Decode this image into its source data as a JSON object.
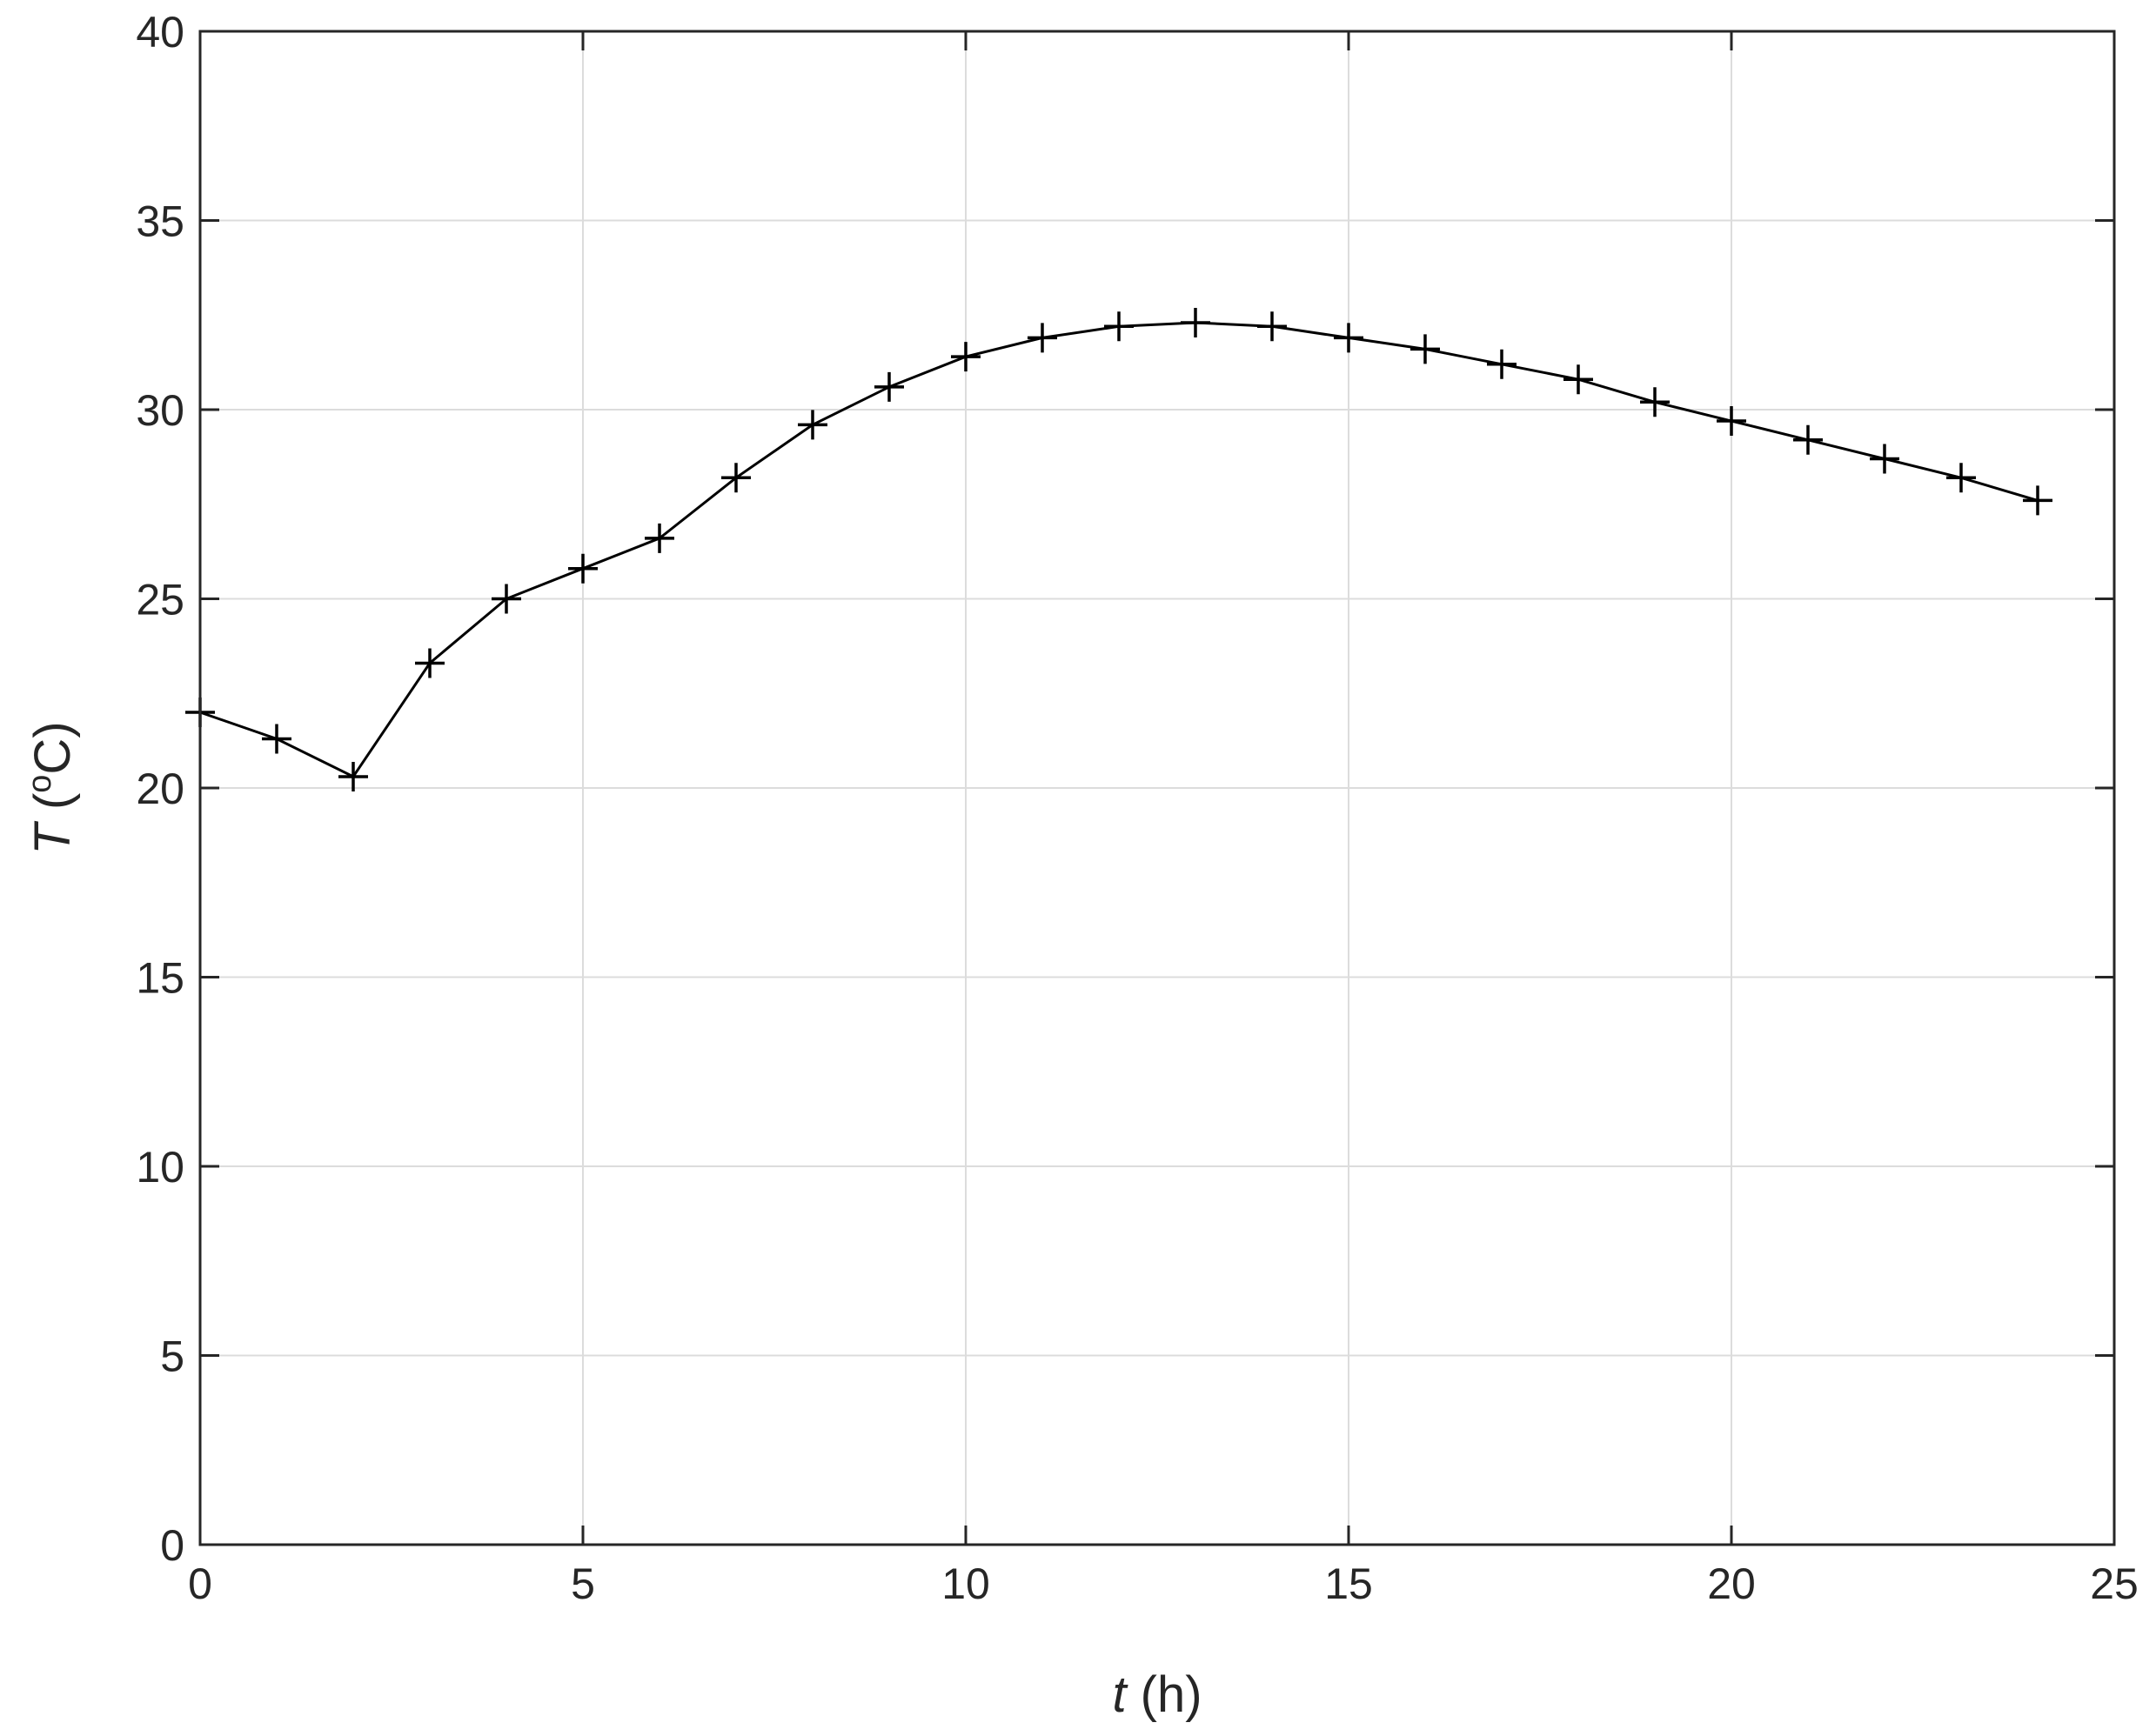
{
  "chart_data": {
    "type": "line",
    "title": "",
    "xlabel": {
      "var": "t",
      "unit": " (h)"
    },
    "ylabel": {
      "var": "T",
      "open": " (",
      "sup": "o",
      "unit": "C)"
    },
    "xlim": [
      0,
      25
    ],
    "ylim": [
      0,
      40
    ],
    "xticks": [
      0,
      5,
      10,
      15,
      20,
      25
    ],
    "yticks": [
      0,
      5,
      10,
      15,
      20,
      25,
      30,
      35,
      40
    ],
    "grid": true,
    "marker": "plus",
    "line_color": "#000000",
    "grid_color": "#dcdcdc",
    "axis_color": "#262626",
    "x": [
      0,
      1,
      2,
      3,
      4,
      5,
      6,
      7,
      8,
      9,
      10,
      11,
      12,
      13,
      14,
      15,
      16,
      17,
      18,
      19,
      20,
      21,
      22,
      23,
      24
    ],
    "y": [
      22.0,
      21.3,
      20.3,
      23.3,
      25.0,
      25.8,
      26.6,
      28.2,
      29.6,
      30.6,
      31.4,
      31.9,
      32.2,
      32.3,
      32.2,
      31.9,
      31.6,
      31.2,
      30.8,
      30.2,
      29.7,
      29.2,
      28.7,
      28.2,
      27.6
    ]
  }
}
